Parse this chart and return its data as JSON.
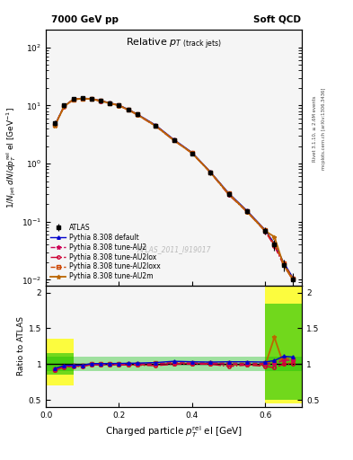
{
  "header_left": "7000 GeV pp",
  "header_right": "Soft QCD",
  "xlabel": "Charged particle $p_T^{\\mathrm{rel}}$ el [GeV]",
  "ylabel_main": "$1/N_{\\mathrm{jet}}\\ dN/dp_T^{\\mathrm{rel}}\\ \\mathrm{el\\ [GeV^{-1}]}$",
  "ylabel_ratio": "Ratio to ATLAS",
  "right_label_top": "Rivet 3.1.10, ≥ 2.6M events",
  "right_label_bot": "mcplots.cern.ch [arXiv:1306.3436]",
  "watermark": "ATLAS_2011_I919017",
  "xdata": [
    0.025,
    0.05,
    0.075,
    0.1,
    0.125,
    0.15,
    0.175,
    0.2,
    0.225,
    0.25,
    0.3,
    0.35,
    0.4,
    0.45,
    0.5,
    0.55,
    0.6,
    0.625,
    0.65,
    0.675
  ],
  "atlas_y": [
    5.0,
    10.0,
    13.0,
    13.5,
    13.0,
    12.0,
    11.0,
    10.0,
    8.5,
    7.0,
    4.5,
    2.5,
    1.5,
    0.7,
    0.3,
    0.15,
    0.07,
    0.04,
    0.018,
    0.01
  ],
  "atlas_yerr": [
    0.5,
    0.8,
    0.9,
    0.9,
    0.8,
    0.7,
    0.6,
    0.5,
    0.4,
    0.3,
    0.2,
    0.15,
    0.1,
    0.06,
    0.03,
    0.015,
    0.01,
    0.008,
    0.004,
    0.003
  ],
  "pythia_default_y": [
    4.7,
    9.8,
    12.8,
    13.3,
    13.1,
    12.1,
    11.1,
    10.1,
    8.6,
    7.1,
    4.6,
    2.6,
    1.55,
    0.72,
    0.31,
    0.155,
    0.072,
    0.042,
    0.02,
    0.011
  ],
  "pythia_AU2_y": [
    4.65,
    9.7,
    12.7,
    13.2,
    13.0,
    12.0,
    11.0,
    10.0,
    8.5,
    7.0,
    4.5,
    2.55,
    1.52,
    0.71,
    0.3,
    0.15,
    0.07,
    0.04,
    0.019,
    0.0105
  ],
  "pythia_AU2lox_y": [
    4.6,
    9.6,
    12.6,
    13.1,
    12.9,
    11.9,
    10.9,
    9.9,
    8.4,
    6.9,
    4.4,
    2.5,
    1.5,
    0.7,
    0.29,
    0.148,
    0.068,
    0.038,
    0.018,
    0.01
  ],
  "pythia_AU2loxx_y": [
    4.65,
    9.75,
    12.75,
    13.25,
    13.05,
    12.05,
    11.05,
    10.05,
    8.55,
    7.05,
    4.55,
    2.55,
    1.52,
    0.71,
    0.305,
    0.152,
    0.071,
    0.041,
    0.0195,
    0.0107
  ],
  "pythia_AU2m_y": [
    4.55,
    9.65,
    12.65,
    13.15,
    12.95,
    11.95,
    10.95,
    9.95,
    8.45,
    6.95,
    4.45,
    2.52,
    1.51,
    0.705,
    0.298,
    0.149,
    0.069,
    0.055,
    0.018,
    0.0102
  ],
  "ratio_default": [
    0.94,
    0.98,
    0.985,
    0.985,
    1.008,
    1.008,
    1.009,
    1.01,
    1.012,
    1.014,
    1.022,
    1.04,
    1.033,
    1.029,
    1.033,
    1.033,
    1.029,
    1.05,
    1.111,
    1.1
  ],
  "ratio_AU2": [
    0.93,
    0.97,
    0.977,
    0.978,
    1.0,
    1.0,
    1.0,
    1.0,
    1.0,
    1.0,
    1.0,
    1.02,
    1.013,
    1.014,
    1.0,
    1.0,
    1.0,
    1.0,
    1.056,
    1.05
  ],
  "ratio_AU2lox": [
    0.92,
    0.96,
    0.969,
    0.97,
    0.992,
    0.992,
    0.991,
    0.99,
    0.988,
    0.986,
    0.978,
    1.0,
    1.0,
    1.0,
    0.967,
    0.987,
    0.971,
    0.95,
    1.0,
    1.0
  ],
  "ratio_AU2loxx": [
    0.93,
    0.975,
    0.981,
    0.981,
    1.004,
    1.004,
    1.005,
    1.005,
    1.006,
    1.007,
    1.011,
    1.02,
    1.013,
    1.014,
    1.017,
    1.013,
    1.014,
    1.025,
    1.083,
    1.07
  ],
  "ratio_AU2m": [
    0.91,
    0.965,
    0.973,
    0.974,
    0.996,
    0.996,
    0.995,
    0.995,
    0.994,
    0.993,
    0.989,
    1.008,
    1.007,
    1.007,
    0.993,
    0.993,
    0.986,
    1.375,
    1.0,
    1.02
  ],
  "xlim": [
    0.0,
    0.7
  ],
  "ylim_main": [
    0.008,
    200
  ],
  "ylim_ratio": [
    0.4,
    2.1
  ],
  "yticks_ratio": [
    0.5,
    1.0,
    1.5,
    2.0
  ],
  "ytick_labels_ratio": [
    "0.5",
    "1",
    "1.5",
    "2"
  ],
  "color_default": "#0000cc",
  "color_AU2": "#cc0055",
  "color_AU2lox": "#cc0033",
  "color_AU2loxx": "#cc4400",
  "color_AU2m": "#bb6600",
  "legend_entries": [
    "ATLAS",
    "Pythia 8.308 default",
    "Pythia 8.308 tune-AU2",
    "Pythia 8.308 tune-AU2lox",
    "Pythia 8.308 tune-AU2loxx",
    "Pythia 8.308 tune-AU2m"
  ],
  "yellow_color": "#ffff00",
  "green_color": "#00bb00",
  "bg_color": "#f5f5f5"
}
